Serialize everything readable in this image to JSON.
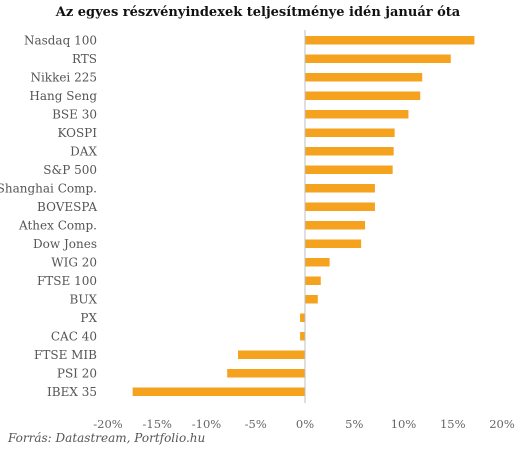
{
  "chart_data": {
    "type": "bar",
    "orientation": "horizontal",
    "title": "Az egyes részvényindexek teljesítménye idén január óta",
    "categories": [
      "Nasdaq 100",
      "RTS",
      "Nikkei 225",
      "Hang Seng",
      "BSE 30",
      "KOSPI",
      "DAX",
      "S&P 500",
      "Shanghai Comp.",
      "BOVESPA",
      "Athex Comp.",
      "Dow Jones",
      "WIG 20",
      "FTSE 100",
      "BUX",
      "PX",
      "CAC 40",
      "FTSE MIB",
      "PSI 20",
      "IBEX 35"
    ],
    "values": [
      17.2,
      14.8,
      11.9,
      11.7,
      10.5,
      9.1,
      9.0,
      8.9,
      7.1,
      7.1,
      6.1,
      5.7,
      2.5,
      1.6,
      1.3,
      -0.5,
      -0.5,
      -6.8,
      -7.9,
      -17.5
    ],
    "xlim": [
      -20,
      20
    ],
    "xticks": [
      "-20%",
      "-15%",
      "-10%",
      "-5%",
      "0%",
      "5%",
      "10%",
      "15%",
      "20%"
    ],
    "xtick_values": [
      -20,
      -15,
      -10,
      -5,
      0,
      5,
      10,
      15,
      20
    ],
    "bar_color": "#f5a21f",
    "grid": false,
    "legend": "none"
  },
  "source": "Forrás: Datastream, Portfolio.hu"
}
